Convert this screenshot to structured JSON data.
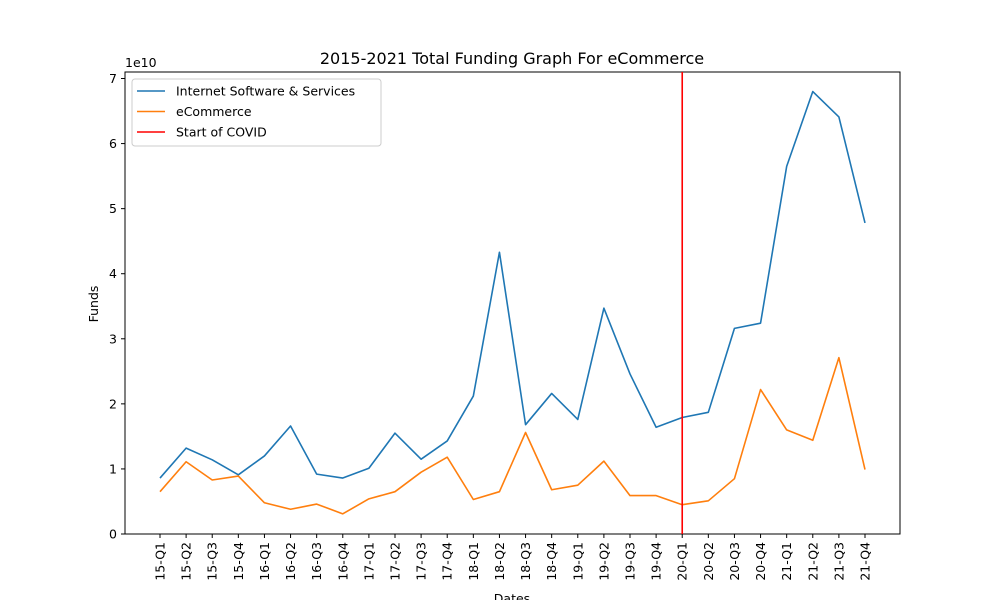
{
  "chart_data": {
    "type": "line",
    "title": "2015-2021 Total Funding Graph For eCommerce",
    "xlabel": "Dates",
    "ylabel": "Funds",
    "y_scale_label": "1e10",
    "ylim": [
      0,
      7.1
    ],
    "yticks": [
      "0",
      "1",
      "2",
      "3",
      "4",
      "5",
      "6",
      "7"
    ],
    "categories": [
      "15-Q1",
      "15-Q2",
      "15-Q3",
      "15-Q4",
      "16-Q1",
      "16-Q2",
      "16-Q3",
      "16-Q4",
      "17-Q1",
      "17-Q2",
      "17-Q3",
      "17-Q4",
      "18-Q1",
      "18-Q2",
      "18-Q3",
      "18-Q4",
      "19-Q1",
      "19-Q2",
      "19-Q3",
      "19-Q4",
      "20-Q1",
      "20-Q2",
      "20-Q3",
      "20-Q4",
      "21-Q1",
      "21-Q2",
      "21-Q3",
      "21-Q4"
    ],
    "series": [
      {
        "name": "Internet Software & Services",
        "color": "#1f77b4",
        "values": [
          0.86,
          1.32,
          1.14,
          0.91,
          1.2,
          1.66,
          0.92,
          0.86,
          1.01,
          1.55,
          1.15,
          1.43,
          2.12,
          4.33,
          1.68,
          2.16,
          1.76,
          3.47,
          2.46,
          1.64,
          1.79,
          1.87,
          3.16,
          3.24,
          5.65,
          6.8,
          6.41,
          4.78
        ]
      },
      {
        "name": "eCommerce",
        "color": "#ff7f0e",
        "values": [
          0.65,
          1.11,
          0.83,
          0.89,
          0.48,
          0.38,
          0.46,
          0.31,
          0.54,
          0.65,
          0.95,
          1.18,
          0.53,
          0.65,
          1.56,
          0.68,
          0.75,
          1.12,
          0.59,
          0.59,
          0.45,
          0.51,
          0.85,
          2.22,
          1.6,
          1.44,
          2.71,
          0.99
        ]
      }
    ],
    "vline": {
      "name": "Start of COVID",
      "at": "20-Q1",
      "color": "#ff0000"
    },
    "legend_position": "top-left",
    "grid": false
  }
}
